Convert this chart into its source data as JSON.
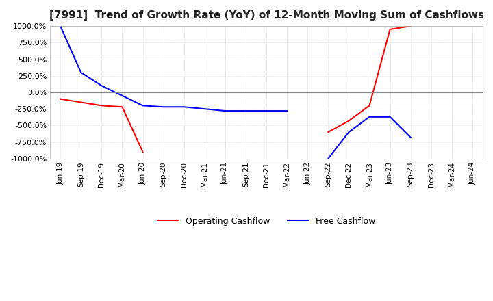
{
  "title": "[7991]  Trend of Growth Rate (YoY) of 12-Month Moving Sum of Cashflows",
  "ylim": [
    -1000,
    1000
  ],
  "yticks": [
    1000,
    750,
    500,
    250,
    0,
    -250,
    -500,
    -750,
    -1000
  ],
  "background_color": "#ffffff",
  "grid_color": "#cccccc",
  "operating_color": "#ff0000",
  "free_color": "#0000ff",
  "x_labels": [
    "Jun-19",
    "Sep-19",
    "Dec-19",
    "Mar-20",
    "Jun-20",
    "Sep-20",
    "Dec-20",
    "Mar-21",
    "Jun-21",
    "Sep-21",
    "Dec-21",
    "Mar-22",
    "Jun-22",
    "Sep-22",
    "Dec-22",
    "Mar-23",
    "Jun-23",
    "Sep-23",
    "Dec-23",
    "Mar-24",
    "Jun-24"
  ],
  "operating_cashflow": [
    -100,
    -150,
    -200,
    -220,
    -900,
    null,
    null,
    null,
    null,
    null,
    null,
    null,
    null,
    -600,
    -430,
    -200,
    950,
    1000,
    null,
    null,
    null
  ],
  "free_cashflow": [
    1000,
    300,
    100,
    -50,
    -200,
    -220,
    -220,
    -250,
    -280,
    -280,
    -280,
    -280,
    null,
    -1000,
    -600,
    -370,
    -370,
    -680,
    null,
    null,
    null
  ]
}
